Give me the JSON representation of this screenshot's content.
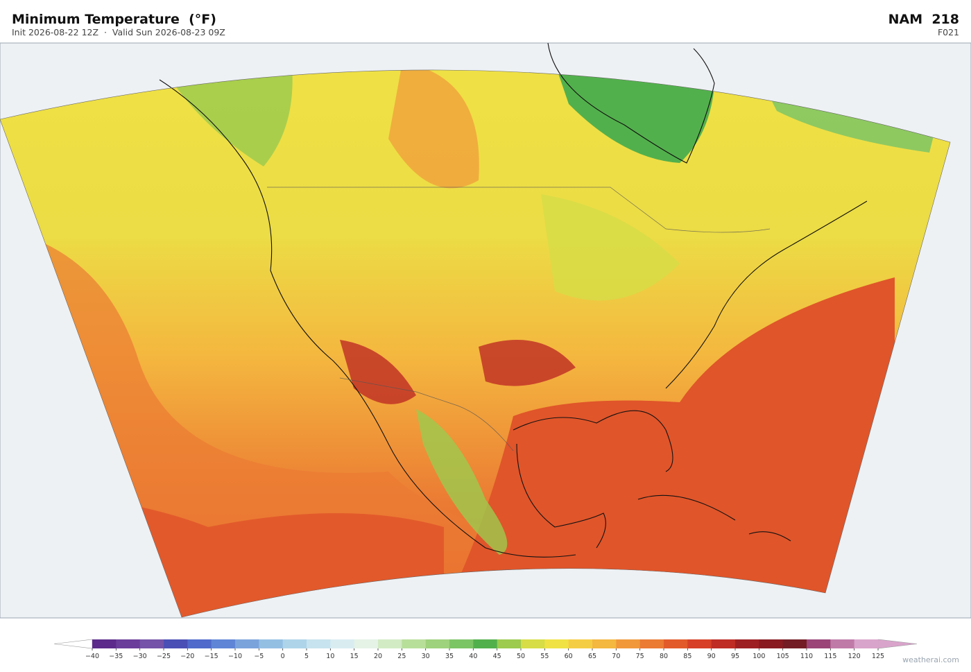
{
  "header": {
    "title": "Minimum Temperature  (°F)",
    "subtitle": "Init 2026-08-22 12Z  ·  Valid Sun 2026-08-23 09Z",
    "model": "NAM  218",
    "forecast_hour": "F021"
  },
  "colorbar": {
    "ticks": [
      {
        "value": -40,
        "label": "−40"
      },
      {
        "value": -35,
        "label": "−35"
      },
      {
        "value": -30,
        "label": "−30"
      },
      {
        "value": -25,
        "label": "−25"
      },
      {
        "value": -20,
        "label": "−20"
      },
      {
        "value": -15,
        "label": "−15"
      },
      {
        "value": -10,
        "label": "−10"
      },
      {
        "value": -5,
        "label": "−5"
      },
      0,
      5,
      10,
      15,
      20,
      25,
      30,
      35,
      40,
      45,
      50,
      55,
      60,
      65,
      70,
      75,
      80,
      85,
      90,
      95,
      100,
      105,
      110,
      115,
      120,
      125
    ],
    "colors": [
      "#5b2a8a",
      "#6a3d9a",
      "#7453a8",
      "#4a4fb5",
      "#4f6acb",
      "#5f86d6",
      "#7aa3dc",
      "#93bfe3",
      "#aed4ea",
      "#c6e3ef",
      "#d9edf1",
      "#e4f3e6",
      "#d2ebc4",
      "#b8df9a",
      "#9ed27c",
      "#7cc565",
      "#52b04c",
      "#9ccb4e",
      "#d6dd46",
      "#f0e245",
      "#f5cd45",
      "#f4b73f",
      "#f1983a",
      "#eb7a33",
      "#e25a2a",
      "#d73f26",
      "#be2c24",
      "#9e1f22",
      "#881a20",
      "#731c24",
      "#9a4477",
      "#c07aa8",
      "#d9a4cb"
    ],
    "under_color": "#ffffff",
    "over_color": "#d9a4cb"
  },
  "footer": {
    "watermark": "weatherai.com"
  }
}
